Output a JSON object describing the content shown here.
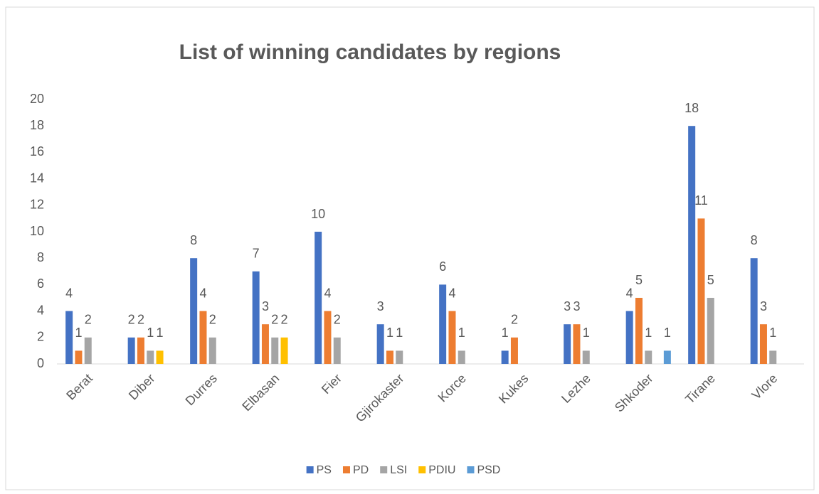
{
  "chart_data": {
    "type": "bar",
    "title": "List of winning candidates by regions",
    "categories": [
      "Berat",
      "Diber",
      "Durres",
      "Elbasan",
      "Fier",
      "Gjirokaster",
      "Korce",
      "Kukes",
      "Lezhe",
      "Shkoder",
      "Tirane",
      "Vlore"
    ],
    "series": [
      {
        "name": "PS",
        "color": "#4472c4",
        "values": [
          4,
          2,
          8,
          7,
          10,
          3,
          6,
          1,
          3,
          4,
          18,
          8
        ]
      },
      {
        "name": "PD",
        "color": "#ed7d31",
        "values": [
          1,
          2,
          4,
          3,
          4,
          1,
          4,
          2,
          3,
          5,
          11,
          3
        ]
      },
      {
        "name": "LSI",
        "color": "#a5a5a5",
        "values": [
          2,
          1,
          2,
          2,
          2,
          1,
          1,
          null,
          1,
          1,
          5,
          1
        ]
      },
      {
        "name": "PDIU",
        "color": "#ffc000",
        "values": [
          null,
          1,
          null,
          2,
          null,
          null,
          null,
          null,
          null,
          null,
          null,
          null
        ]
      },
      {
        "name": "PSD",
        "color": "#5b9bd5",
        "values": [
          null,
          null,
          null,
          null,
          null,
          null,
          null,
          null,
          null,
          1,
          null,
          null
        ]
      }
    ],
    "ylim": [
      0,
      20
    ],
    "yticks": [
      0,
      2,
      4,
      6,
      8,
      10,
      12,
      14,
      16,
      18,
      20
    ],
    "grid": false,
    "legend": "bottom"
  }
}
